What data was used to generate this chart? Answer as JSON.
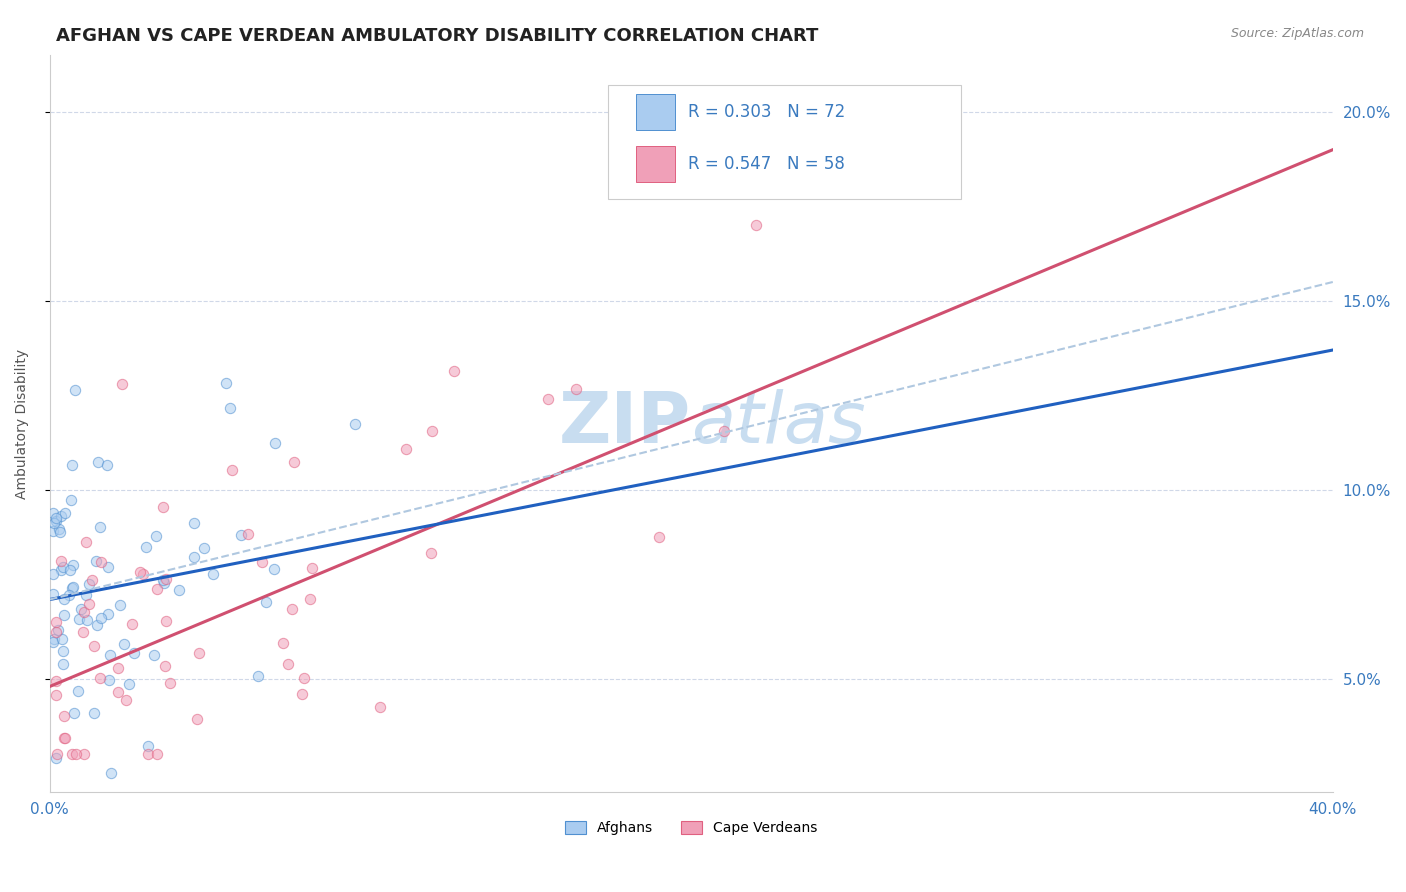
{
  "title": "AFGHAN VS CAPE VERDEAN AMBULATORY DISABILITY CORRELATION CHART",
  "source": "Source: ZipAtlas.com",
  "ylabel": "Ambulatory Disability",
  "ylabel_right_ticks": [
    "5.0%",
    "10.0%",
    "15.0%",
    "20.0%"
  ],
  "ylabel_right_vals": [
    0.05,
    0.1,
    0.15,
    0.2
  ],
  "xlim": [
    0.0,
    0.4
  ],
  "ylim": [
    0.02,
    0.215
  ],
  "legend_r1": "R = 0.303",
  "legend_n1": "N = 72",
  "legend_r2": "R = 0.547",
  "legend_n2": "N = 58",
  "afghan_color": "#aaccf0",
  "cape_verdean_color": "#f0a0b8",
  "afghan_edge_color": "#5090d0",
  "cape_verdean_edge_color": "#e06080",
  "afghan_line_color": "#2060c0",
  "cape_verdean_line_color": "#d05070",
  "dashed_line_color": "#b0c8e0",
  "watermark_color": "#c8ddf0",
  "watermark_fontsize": 52,
  "background_color": "#ffffff",
  "grid_color": "#d0d8e8",
  "title_fontsize": 13,
  "axis_label_fontsize": 10,
  "tick_fontsize": 11,
  "legend_fontsize": 12,
  "scatter_size": 55,
  "scatter_alpha": 0.55,
  "afghan_line_intercept": 0.071,
  "afghan_line_slope": 0.165,
  "cape_line_intercept": 0.048,
  "cape_line_slope": 0.355,
  "dashed_line_intercept": 0.071,
  "dashed_line_slope": 0.21
}
